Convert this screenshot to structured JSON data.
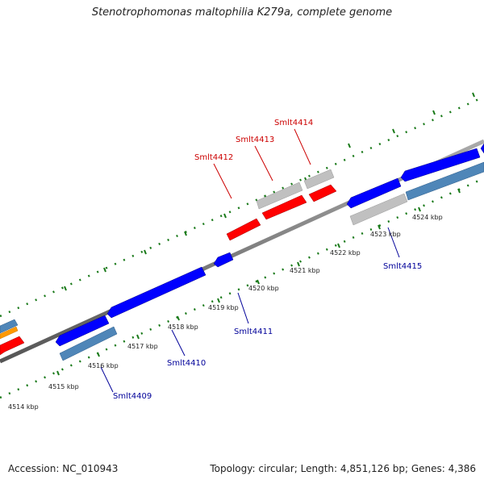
{
  "title": "Stenotrophomonas maltophilia K279a, complete genome",
  "footer": {
    "accession": "Accession: NC_010943",
    "summary": "Topology: circular; Length: 4,851,126 bp; Genes: 4,386"
  },
  "colors": {
    "forward_gene": "#ff0000",
    "reverse_gene": "#0000ff",
    "forward_label": "#cc0000",
    "reverse_label": "#000099",
    "tick": "#1a7a1a",
    "backbone": "#808080",
    "cds_grey": "#c0c0c0",
    "cds_steelblue": "#4f86b8",
    "cds_orange": "#ff9900"
  },
  "gene_labels": {
    "forward": [
      "Smlt4412",
      "Smlt4413",
      "Smlt4414"
    ],
    "reverse": [
      "Smlt4409",
      "Smlt4410",
      "Smlt4411",
      "Smlt4415"
    ]
  },
  "scale_labels": [
    "4514 kbp",
    "4515 kbp",
    "4516 kbp",
    "4517 kbp",
    "4518 kbp",
    "4519 kbp",
    "4520 kbp",
    "4521 kbp",
    "4522 kbp",
    "4523 kbp",
    "4524 kbp"
  ]
}
